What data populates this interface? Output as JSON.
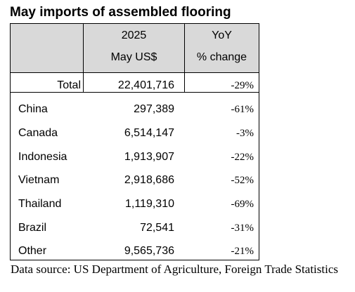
{
  "title": "May imports of assembled flooring",
  "table": {
    "header": {
      "col2_line1": "2025",
      "col2_line2": "May US$",
      "col3_line1": "YoY",
      "col3_line2": "% change"
    },
    "total": {
      "label": "Total",
      "value": "22,401,716",
      "change": "-29%"
    },
    "rows": [
      {
        "country": "China",
        "value": "297,389",
        "change": "-61%"
      },
      {
        "country": "Canada",
        "value": "6,514,147",
        "change": "-3%"
      },
      {
        "country": "Indonesia",
        "value": "1,913,907",
        "change": "-22%"
      },
      {
        "country": "Vietnam",
        "value": "2,918,686",
        "change": "-52%"
      },
      {
        "country": "Thailand",
        "value": "1,119,310",
        "change": "-69%"
      },
      {
        "country": "Brazil",
        "value": "72,541",
        "change": "-31%"
      },
      {
        "country": "Other",
        "value": "9,565,736",
        "change": "-21%"
      }
    ]
  },
  "source": "Data source: US Department of Agriculture, Foreign Trade Statistics",
  "colors": {
    "header_background": "#d9d9d9",
    "border": "#000000",
    "text": "#000000"
  }
}
